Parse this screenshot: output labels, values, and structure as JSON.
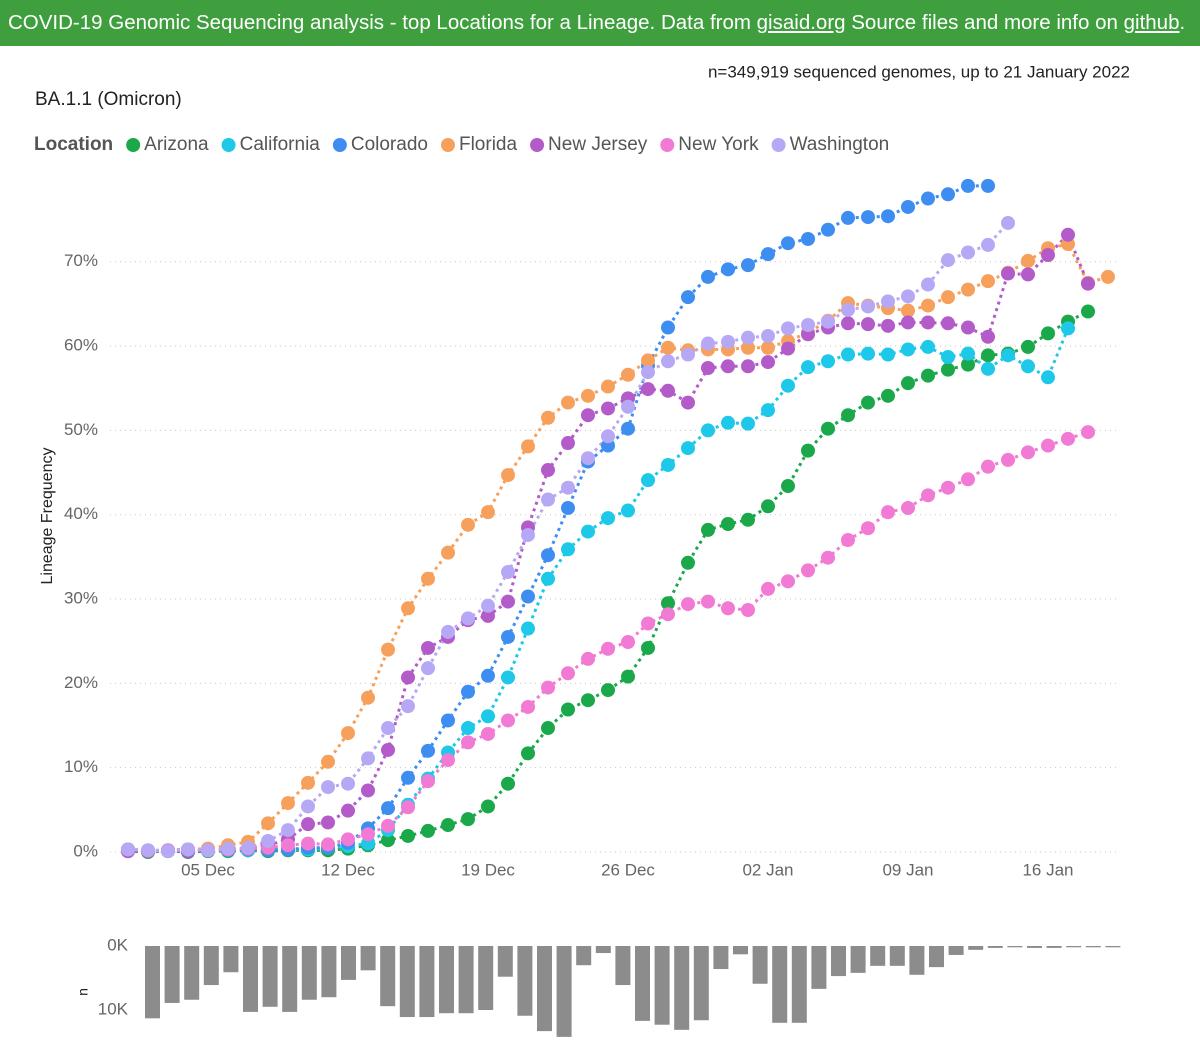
{
  "header": {
    "text1": "COVID-19 Genomic Sequencing analysis - top Locations for a Lineage. Data from",
    "link1": "gisaid.org",
    "text2": "Source files and more info on",
    "link2": "github",
    "end": "."
  },
  "chart_data": [
    {
      "type": "line",
      "title": "BA.1.1 (Omicron)",
      "subtitle": "n=349,919 sequenced genomes, up to 21 January 2022",
      "legend_title": "Location",
      "ylabel": "Lineage Frequency",
      "grid": true,
      "line_style": "dotted",
      "categories": [
        null,
        null,
        null,
        null,
        "05 Dec",
        null,
        null,
        null,
        null,
        null,
        null,
        "12 Dec",
        null,
        null,
        null,
        null,
        null,
        null,
        "19 Dec",
        null,
        null,
        null,
        null,
        null,
        null,
        "26 Dec",
        null,
        null,
        null,
        null,
        null,
        null,
        "02 Jan",
        null,
        null,
        null,
        null,
        null,
        null,
        "09 Jan",
        null,
        null,
        null,
        null,
        null,
        null,
        "16 Jan",
        null,
        null,
        null
      ],
      "ylim": [
        0,
        81
      ],
      "yticks": [
        {
          "value": 0,
          "label": "0%"
        },
        {
          "value": 10,
          "label": "10%"
        },
        {
          "value": 20,
          "label": "20%"
        },
        {
          "value": 30,
          "label": "30%"
        },
        {
          "value": 40,
          "label": "40%"
        },
        {
          "value": 50,
          "label": "50%"
        },
        {
          "value": 60,
          "label": "60%"
        },
        {
          "value": 70,
          "label": "70%"
        }
      ],
      "series": [
        {
          "name": "Arizona",
          "color": "#1aa84a",
          "values": [
            0.1,
            0.0,
            0.1,
            0.0,
            0.1,
            0.1,
            0.2,
            0.1,
            0.2,
            0.2,
            0.2,
            0.4,
            0.8,
            1.4,
            1.9,
            2.5,
            3.2,
            3.9,
            5.4,
            8.1,
            11.7,
            14.7,
            16.9,
            18.0,
            19.2,
            20.8,
            24.2,
            29.5,
            34.3,
            38.2,
            38.9,
            39.4,
            41.0,
            43.4,
            47.6,
            50.2,
            51.8,
            53.3,
            54.1,
            55.6,
            56.5,
            57.2,
            57.8,
            58.9,
            59.1,
            59.9,
            61.5,
            62.9,
            64.1,
            null
          ]
        },
        {
          "name": "California",
          "color": "#1ec8e8",
          "values": [
            0.3,
            0.2,
            0.2,
            0.3,
            0.2,
            0.3,
            0.2,
            0.3,
            0.3,
            0.3,
            0.5,
            0.7,
            1.0,
            2.6,
            5.6,
            8.7,
            11.8,
            14.7,
            16.1,
            20.7,
            26.5,
            32.4,
            35.9,
            38.0,
            39.6,
            40.5,
            44.1,
            45.9,
            47.9,
            50.0,
            50.9,
            50.8,
            52.4,
            55.3,
            57.5,
            58.2,
            59.0,
            59.1,
            59.0,
            59.6,
            59.9,
            58.7,
            59.1,
            57.3,
            58.9,
            57.6,
            56.3,
            62.1,
            null,
            null
          ]
        },
        {
          "name": "Colorado",
          "color": "#3d8ef0",
          "values": [
            0.3,
            0.1,
            0.2,
            0.1,
            0.2,
            0.2,
            0.3,
            0.2,
            0.3,
            0.5,
            0.5,
            1.1,
            2.8,
            5.2,
            8.8,
            12.0,
            15.6,
            19.0,
            20.9,
            25.5,
            30.3,
            35.2,
            40.8,
            46.3,
            48.2,
            50.2,
            57.7,
            62.2,
            65.8,
            68.2,
            69.1,
            69.6,
            70.9,
            72.2,
            72.7,
            73.8,
            75.2,
            75.3,
            75.4,
            76.5,
            77.5,
            78.0,
            79.0,
            79.0,
            null,
            null,
            null,
            null,
            null,
            null
          ]
        },
        {
          "name": "Florida",
          "color": "#f7a05c",
          "values": [
            0.2,
            0.1,
            0.2,
            0.3,
            0.4,
            0.8,
            1.2,
            3.4,
            5.8,
            8.2,
            10.7,
            14.1,
            18.3,
            24.0,
            28.9,
            32.4,
            35.5,
            38.8,
            40.3,
            44.7,
            48.1,
            51.5,
            53.3,
            54.1,
            55.2,
            56.6,
            58.3,
            59.8,
            59.5,
            59.6,
            59.6,
            59.8,
            59.8,
            60.6,
            61.6,
            63.0,
            65.1,
            64.8,
            64.5,
            64.2,
            64.8,
            65.8,
            66.7,
            67.7,
            68.7,
            70.1,
            71.6,
            72.1,
            67.5,
            68.2
          ]
        },
        {
          "name": "New Jersey",
          "color": "#b25bc9",
          "values": [
            0.1,
            0.1,
            0.2,
            0.1,
            0.2,
            0.3,
            0.4,
            0.8,
            1.5,
            3.3,
            3.5,
            4.9,
            7.3,
            12.1,
            20.7,
            24.2,
            25.5,
            27.5,
            28.0,
            29.7,
            38.5,
            45.3,
            48.5,
            51.8,
            52.6,
            53.8,
            54.9,
            54.7,
            53.3,
            57.4,
            57.6,
            57.6,
            58.1,
            59.7,
            61.4,
            62.2,
            62.7,
            62.6,
            62.4,
            62.8,
            62.8,
            62.7,
            62.2,
            61.1,
            68.6,
            68.5,
            70.8,
            73.2,
            67.4,
            null
          ]
        },
        {
          "name": "New York",
          "color": "#f07ad4",
          "values": [
            0.3,
            0.2,
            0.2,
            0.3,
            0.2,
            0.3,
            0.4,
            0.5,
            0.8,
            1.0,
            0.9,
            1.5,
            2.1,
            3.1,
            5.3,
            8.4,
            10.9,
            13.0,
            14.0,
            15.6,
            17.2,
            19.5,
            21.2,
            22.9,
            24.1,
            24.9,
            27.1,
            28.2,
            29.4,
            29.7,
            28.9,
            28.7,
            31.2,
            32.1,
            33.4,
            34.9,
            37.0,
            38.4,
            40.3,
            40.8,
            42.3,
            43.2,
            44.2,
            45.7,
            46.5,
            47.4,
            48.2,
            49.0,
            49.8,
            null
          ]
        },
        {
          "name": "Washington",
          "color": "#b7a8f5",
          "values": [
            0.3,
            0.2,
            0.1,
            0.3,
            0.2,
            0.4,
            0.5,
            1.3,
            2.6,
            5.4,
            7.7,
            8.1,
            11.1,
            14.7,
            17.3,
            21.8,
            26.1,
            27.7,
            29.2,
            33.2,
            37.6,
            41.8,
            43.2,
            46.7,
            49.3,
            52.8,
            56.9,
            58.2,
            59.0,
            60.3,
            60.5,
            61.0,
            61.2,
            62.1,
            62.5,
            62.9,
            64.3,
            64.7,
            65.3,
            65.9,
            67.3,
            70.2,
            71.1,
            72.0,
            74.6,
            null,
            null,
            null,
            null,
            null
          ]
        }
      ]
    },
    {
      "type": "bar",
      "ylabel": "n",
      "color": "#8c8c8c",
      "inverted": true,
      "ylim": [
        0,
        15000
      ],
      "yticks": [
        {
          "value": 0,
          "label": "0K"
        },
        {
          "value": 10000,
          "label": "10K"
        }
      ],
      "values": [
        11300,
        8900,
        8400,
        6100,
        4100,
        10300,
        9500,
        10300,
        8400,
        8000,
        5300,
        3800,
        9400,
        11100,
        11100,
        10500,
        10500,
        10000,
        4800,
        10900,
        13300,
        14200,
        3000,
        1100,
        6100,
        11700,
        12300,
        13100,
        11600,
        3600,
        1300,
        5900,
        12000,
        12000,
        6700,
        4700,
        4200,
        3100,
        3100,
        4500,
        3300,
        1400,
        600,
        300,
        200,
        300,
        300,
        200,
        200,
        200
      ]
    }
  ]
}
